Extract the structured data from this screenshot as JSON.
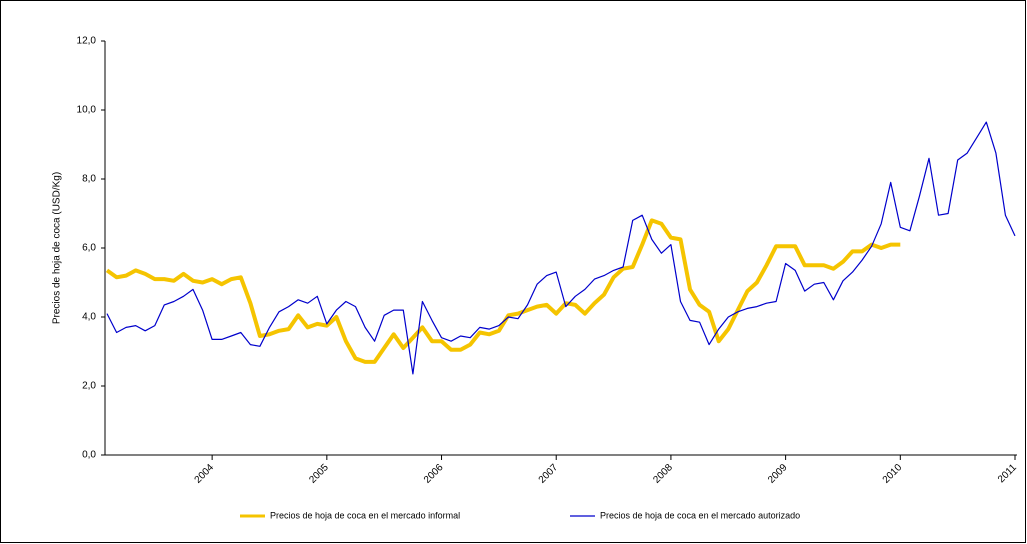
{
  "chart_data": {
    "type": "line",
    "y_label": "Precios de hoja de coca (USD/Kg)",
    "categories": [
      null,
      null,
      null,
      null,
      null,
      null,
      null,
      null,
      null,
      null,
      null,
      "2004",
      null,
      null,
      null,
      null,
      null,
      null,
      null,
      null,
      null,
      null,
      null,
      "2005",
      null,
      null,
      null,
      null,
      null,
      null,
      null,
      null,
      null,
      null,
      null,
      "2006",
      null,
      null,
      null,
      null,
      null,
      null,
      null,
      null,
      null,
      null,
      null,
      "2007",
      null,
      null,
      null,
      null,
      null,
      null,
      null,
      null,
      null,
      null,
      null,
      "2008",
      null,
      null,
      null,
      null,
      null,
      null,
      null,
      null,
      null,
      null,
      null,
      "2009",
      null,
      null,
      null,
      null,
      null,
      null,
      null,
      null,
      null,
      null,
      null,
      "2010",
      null,
      null,
      null,
      null,
      null,
      null,
      null,
      null,
      null,
      null,
      null,
      "2011"
    ],
    "series": [
      {
        "name": "Precios de hoja de coca en el mercado informal",
        "color": "#f5c400",
        "values": [
          5.35,
          5.15,
          5.2,
          5.35,
          5.25,
          5.1,
          5.1,
          5.05,
          5.25,
          5.05,
          5.0,
          5.1,
          4.95,
          5.1,
          5.15,
          4.4,
          3.45,
          3.5,
          3.6,
          3.65,
          4.05,
          3.7,
          3.8,
          3.75,
          4.0,
          3.3,
          2.8,
          2.7,
          2.7,
          3.1,
          3.5,
          3.1,
          3.4,
          3.7,
          3.3,
          3.3,
          3.05,
          3.05,
          3.2,
          3.55,
          3.5,
          3.6,
          4.05,
          4.1,
          4.2,
          4.3,
          4.35,
          4.1,
          4.4,
          4.35,
          4.1,
          4.4,
          4.65,
          5.15,
          5.4,
          5.45,
          6.1,
          6.8,
          6.7,
          6.3,
          6.25,
          4.8,
          4.35,
          4.15,
          3.3,
          3.65,
          4.2,
          4.75,
          5.0,
          5.5,
          6.05,
          6.05,
          6.05,
          5.5,
          5.5,
          5.5,
          5.4,
          5.6,
          5.9,
          5.9,
          6.1,
          6.0,
          6.1,
          6.1,
          null,
          null,
          null,
          null,
          null,
          null,
          null,
          null,
          null,
          null,
          null,
          null
        ]
      },
      {
        "name": "Precios de hoja de coca  en el mercado autorizado",
        "color": "#0000cc",
        "values": [
          4.1,
          3.55,
          3.7,
          3.75,
          3.6,
          3.75,
          4.35,
          4.45,
          4.6,
          4.8,
          4.2,
          3.35,
          3.35,
          3.45,
          3.55,
          3.2,
          3.15,
          3.7,
          4.15,
          4.3,
          4.5,
          4.4,
          4.6,
          3.8,
          4.2,
          4.45,
          4.3,
          3.7,
          3.3,
          4.05,
          4.2,
          4.2,
          2.35,
          4.45,
          3.9,
          3.4,
          3.3,
          3.45,
          3.4,
          3.7,
          3.65,
          3.75,
          4.0,
          3.95,
          4.35,
          4.95,
          5.2,
          5.3,
          4.3,
          4.6,
          4.8,
          5.1,
          5.2,
          5.35,
          5.45,
          6.8,
          6.95,
          6.25,
          5.85,
          6.1,
          4.45,
          3.9,
          3.85,
          3.2,
          3.65,
          4.0,
          4.15,
          4.25,
          4.3,
          4.4,
          4.45,
          5.55,
          5.35,
          4.75,
          4.95,
          5.0,
          4.5,
          5.05,
          5.3,
          5.65,
          6.05,
          6.7,
          7.9,
          6.6,
          6.5,
          7.5,
          8.6,
          6.95,
          7.0,
          8.55,
          8.75,
          9.2,
          9.65,
          8.75,
          6.95,
          6.35
        ]
      }
    ],
    "ylim": [
      0,
      12
    ],
    "yticks": [
      {
        "value": 0,
        "label": "0,0"
      },
      {
        "value": 2,
        "label": "2,0"
      },
      {
        "value": 4,
        "label": "4,0"
      },
      {
        "value": 6,
        "label": "6,0"
      },
      {
        "value": 8,
        "label": "8,0"
      },
      {
        "value": 10,
        "label": "10,0"
      },
      {
        "value": 12,
        "label": "12,0"
      }
    ],
    "legend": "bottom"
  }
}
